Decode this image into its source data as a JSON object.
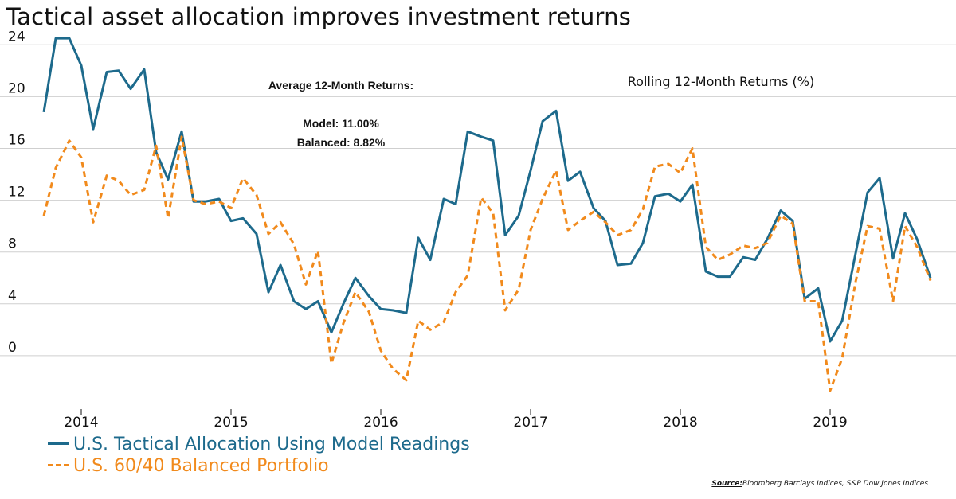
{
  "title": "Tactical asset allocation improves investment returns",
  "legend": {
    "model": "U.S. Tactical Allocation Using Model Readings",
    "balanced": "U.S. 60/40 Balanced Portfolio"
  },
  "source": {
    "label": "Source:",
    "text": "Bloomberg Barclays Indices, S&P Dow Jones Indices"
  },
  "colors": {
    "model": "#1d6a8c",
    "balanced": "#f18a1c",
    "grid": "#cfcfcf"
  },
  "chart_data": {
    "type": "line",
    "title": "Rolling 12-Month Returns (%)",
    "annotations": {
      "heading": "Average 12-Month Returns:",
      "model": "Model: 11.00%",
      "balanced": "Balanced: 8.82%"
    },
    "xlabel": "",
    "ylabel": "",
    "xlim": [
      2013.75,
      2019.67
    ],
    "ylim": [
      -4,
      25
    ],
    "xticks": [
      2014,
      2015,
      2016,
      2017,
      2018,
      2019
    ],
    "xtick_labels": [
      "2014",
      "2015",
      "2016",
      "2017",
      "2018",
      "2019"
    ],
    "yticks": [
      0,
      4,
      8,
      12,
      16,
      20,
      24
    ],
    "ytick_labels": [
      "0",
      "4",
      "8",
      "12",
      "16",
      "20",
      "24"
    ],
    "grid": "horizontal",
    "x": [
      2013.75,
      2013.83,
      2013.92,
      2014.0,
      2014.08,
      2014.17,
      2014.25,
      2014.33,
      2014.42,
      2014.5,
      2014.58,
      2014.67,
      2014.75,
      2014.83,
      2014.92,
      2015.0,
      2015.08,
      2015.17,
      2015.25,
      2015.33,
      2015.42,
      2015.5,
      2015.58,
      2015.67,
      2015.75,
      2015.83,
      2015.92,
      2016.0,
      2016.08,
      2016.17,
      2016.25,
      2016.33,
      2016.42,
      2016.5,
      2016.58,
      2016.67,
      2016.75,
      2016.83,
      2016.92,
      2017.0,
      2017.08,
      2017.17,
      2017.25,
      2017.33,
      2017.42,
      2017.5,
      2017.58,
      2017.67,
      2017.75,
      2017.83,
      2017.92,
      2018.0,
      2018.08,
      2018.17,
      2018.25,
      2018.33,
      2018.42,
      2018.5,
      2018.58,
      2018.67,
      2018.75,
      2018.83,
      2018.92,
      2019.0,
      2019.08,
      2019.17,
      2019.25,
      2019.33,
      2019.42,
      2019.5,
      2019.58,
      2019.67
    ],
    "series": [
      {
        "name": "U.S. Tactical Allocation Using Model Readings",
        "style": "solid",
        "values": [
          18.8,
          24.5,
          24.5,
          22.4,
          17.5,
          21.9,
          22.0,
          20.6,
          22.1,
          15.7,
          13.6,
          17.3,
          11.9,
          11.9,
          12.1,
          10.4,
          10.6,
          9.4,
          4.9,
          7.0,
          4.2,
          3.6,
          4.2,
          1.8,
          4.0,
          6.0,
          4.6,
          3.6,
          3.5,
          3.3,
          9.1,
          7.4,
          12.1,
          11.7,
          17.3,
          16.9,
          16.6,
          9.3,
          10.8,
          14.3,
          18.1,
          18.9,
          13.5,
          14.2,
          11.4,
          10.4,
          7.0,
          7.1,
          8.7,
          12.3,
          12.5,
          11.9,
          13.2,
          6.5,
          6.1,
          6.1,
          7.6,
          7.4,
          9.0,
          11.2,
          10.4,
          4.4,
          5.2,
          1.1,
          2.7,
          7.9,
          12.6,
          13.7,
          7.5,
          11.0,
          9.0,
          6.0
        ]
      },
      {
        "name": "U.S. 60/40 Balanced Portfolio",
        "style": "dashed",
        "values": [
          10.8,
          14.5,
          16.6,
          15.3,
          10.3,
          13.9,
          13.5,
          12.4,
          12.8,
          16.2,
          10.6,
          16.9,
          12.0,
          11.7,
          11.9,
          11.4,
          13.7,
          12.4,
          9.4,
          10.3,
          8.6,
          5.5,
          8.1,
          -0.6,
          2.5,
          4.9,
          3.4,
          0.4,
          -1.0,
          -1.9,
          2.7,
          2.0,
          2.6,
          4.9,
          6.2,
          12.2,
          11.0,
          3.5,
          5.1,
          9.7,
          12.1,
          14.3,
          9.7,
          10.4,
          11.1,
          10.3,
          9.3,
          9.7,
          11.3,
          14.6,
          14.8,
          14.1,
          16.0,
          8.4,
          7.4,
          7.8,
          8.5,
          8.3,
          8.7,
          10.8,
          10.2,
          4.2,
          4.2,
          -2.7,
          -0.2,
          5.7,
          10.0,
          9.8,
          4.2,
          10.0,
          8.4,
          5.8
        ]
      }
    ]
  }
}
